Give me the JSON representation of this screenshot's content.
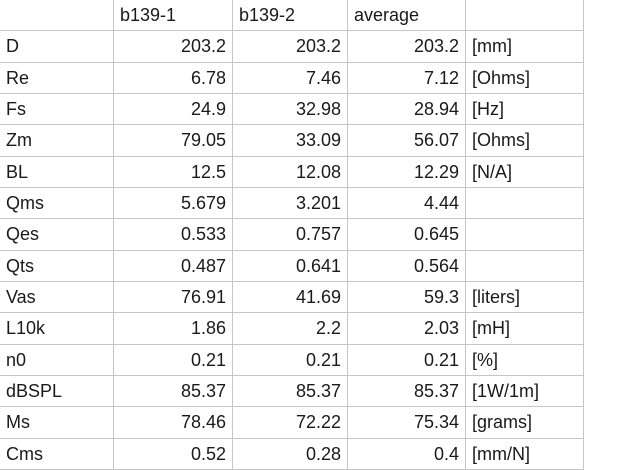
{
  "table": {
    "columns": [
      "b139-1",
      "b139-2",
      "average"
    ],
    "rows": [
      {
        "label": "D",
        "values": [
          203.2,
          203.2,
          203.2
        ],
        "unit": "[mm]"
      },
      {
        "label": "Re",
        "values": [
          6.78,
          7.46,
          7.12
        ],
        "unit": "[Ohms]"
      },
      {
        "label": "Fs",
        "values": [
          24.9,
          32.98,
          28.94
        ],
        "unit": "[Hz]"
      },
      {
        "label": "Zm",
        "values": [
          79.05,
          33.09,
          56.07
        ],
        "unit": "[Ohms]"
      },
      {
        "label": "BL",
        "values": [
          12.5,
          12.08,
          12.29
        ],
        "unit": "[N/A]"
      },
      {
        "label": "Qms",
        "values": [
          5.679,
          3.201,
          4.44
        ]
      },
      {
        "label": "Qes",
        "values": [
          0.533,
          0.757,
          0.645
        ]
      },
      {
        "label": "Qts",
        "values": [
          0.487,
          0.641,
          0.564
        ]
      },
      {
        "label": "Vas",
        "values": [
          76.91,
          41.69,
          59.3
        ],
        "unit": "[liters]"
      },
      {
        "label": "L10k",
        "values": [
          1.86,
          2.2,
          2.03
        ],
        "unit": "[mH]"
      },
      {
        "label": "n0",
        "values": [
          0.21,
          0.21,
          0.21
        ],
        "unit": "[%]"
      },
      {
        "label": "dBSPL",
        "values": [
          85.37,
          85.37,
          85.37
        ],
        "unit": "[1W/1m]"
      },
      {
        "label": "Ms",
        "values": [
          78.46,
          72.22,
          75.34
        ],
        "unit": "[grams]"
      },
      {
        "label": "Cms",
        "values": [
          0.52,
          0.28,
          0.4
        ],
        "unit": "[mm/N]"
      }
    ]
  }
}
